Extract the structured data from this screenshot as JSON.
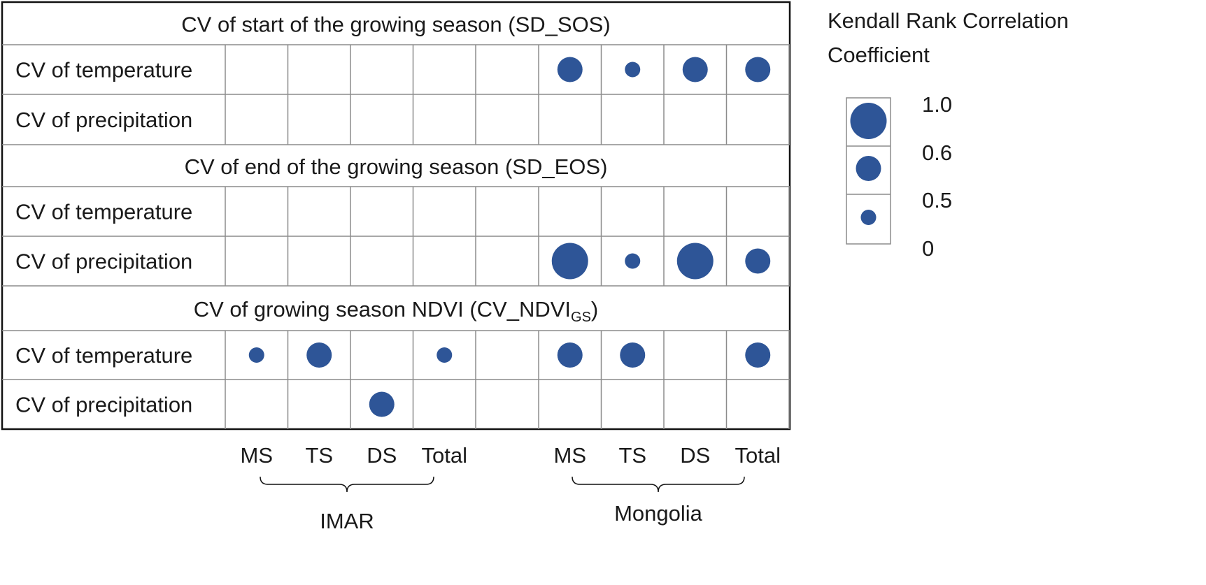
{
  "chart_data": {
    "type": "bubble-matrix",
    "color": "#2e5597",
    "row_labels": [
      "CV of temperature",
      "CV of precipitation"
    ],
    "column_labels": [
      "MS",
      "TS",
      "DS",
      "Total",
      "MS",
      "TS",
      "DS",
      "Total"
    ],
    "groups": [
      {
        "name": "IMAR",
        "columns": [
          "MS",
          "TS",
          "DS",
          "Total"
        ]
      },
      {
        "name": "Mongolia",
        "columns": [
          "MS",
          "TS",
          "DS",
          "Total"
        ]
      }
    ],
    "sections": [
      {
        "title": "CV of start of the growing season  (SD_SOS)",
        "rows": [
          {
            "label": "CV of temperature",
            "IMAR": [
              null,
              null,
              null,
              null
            ],
            "Mongolia": [
              0.6,
              0.5,
              0.6,
              0.6
            ]
          },
          {
            "label": "CV of precipitation",
            "IMAR": [
              null,
              null,
              null,
              null
            ],
            "Mongolia": [
              null,
              null,
              null,
              null
            ]
          }
        ]
      },
      {
        "title": "CV of end of the growing season  (SD_EOS)",
        "rows": [
          {
            "label": "CV of temperature",
            "IMAR": [
              null,
              null,
              null,
              null
            ],
            "Mongolia": [
              null,
              null,
              null,
              null
            ]
          },
          {
            "label": "CV of precipitation",
            "IMAR": [
              null,
              null,
              null,
              null
            ],
            "Mongolia": [
              1.0,
              0.5,
              1.0,
              0.6
            ]
          }
        ]
      },
      {
        "title": "CV of growing season NDVI  (CV_NDVI",
        "title_subscript": "GS",
        "title_suffix": ")",
        "rows": [
          {
            "label": "CV of temperature",
            "IMAR": [
              0.5,
              0.6,
              null,
              0.5
            ],
            "Mongolia": [
              0.6,
              0.6,
              null,
              0.6
            ]
          },
          {
            "label": "CV of precipitation",
            "IMAR": [
              null,
              null,
              0.6,
              null
            ],
            "Mongolia": [
              null,
              null,
              null,
              null
            ]
          }
        ]
      }
    ],
    "legend": {
      "title_line1": "Kendall Rank Correlation",
      "title_line2": "Coefficient",
      "levels": [
        1.0,
        0.6,
        0.5
      ],
      "tick_labels": [
        "1.0",
        "0.6",
        "0.5",
        "0"
      ]
    }
  }
}
